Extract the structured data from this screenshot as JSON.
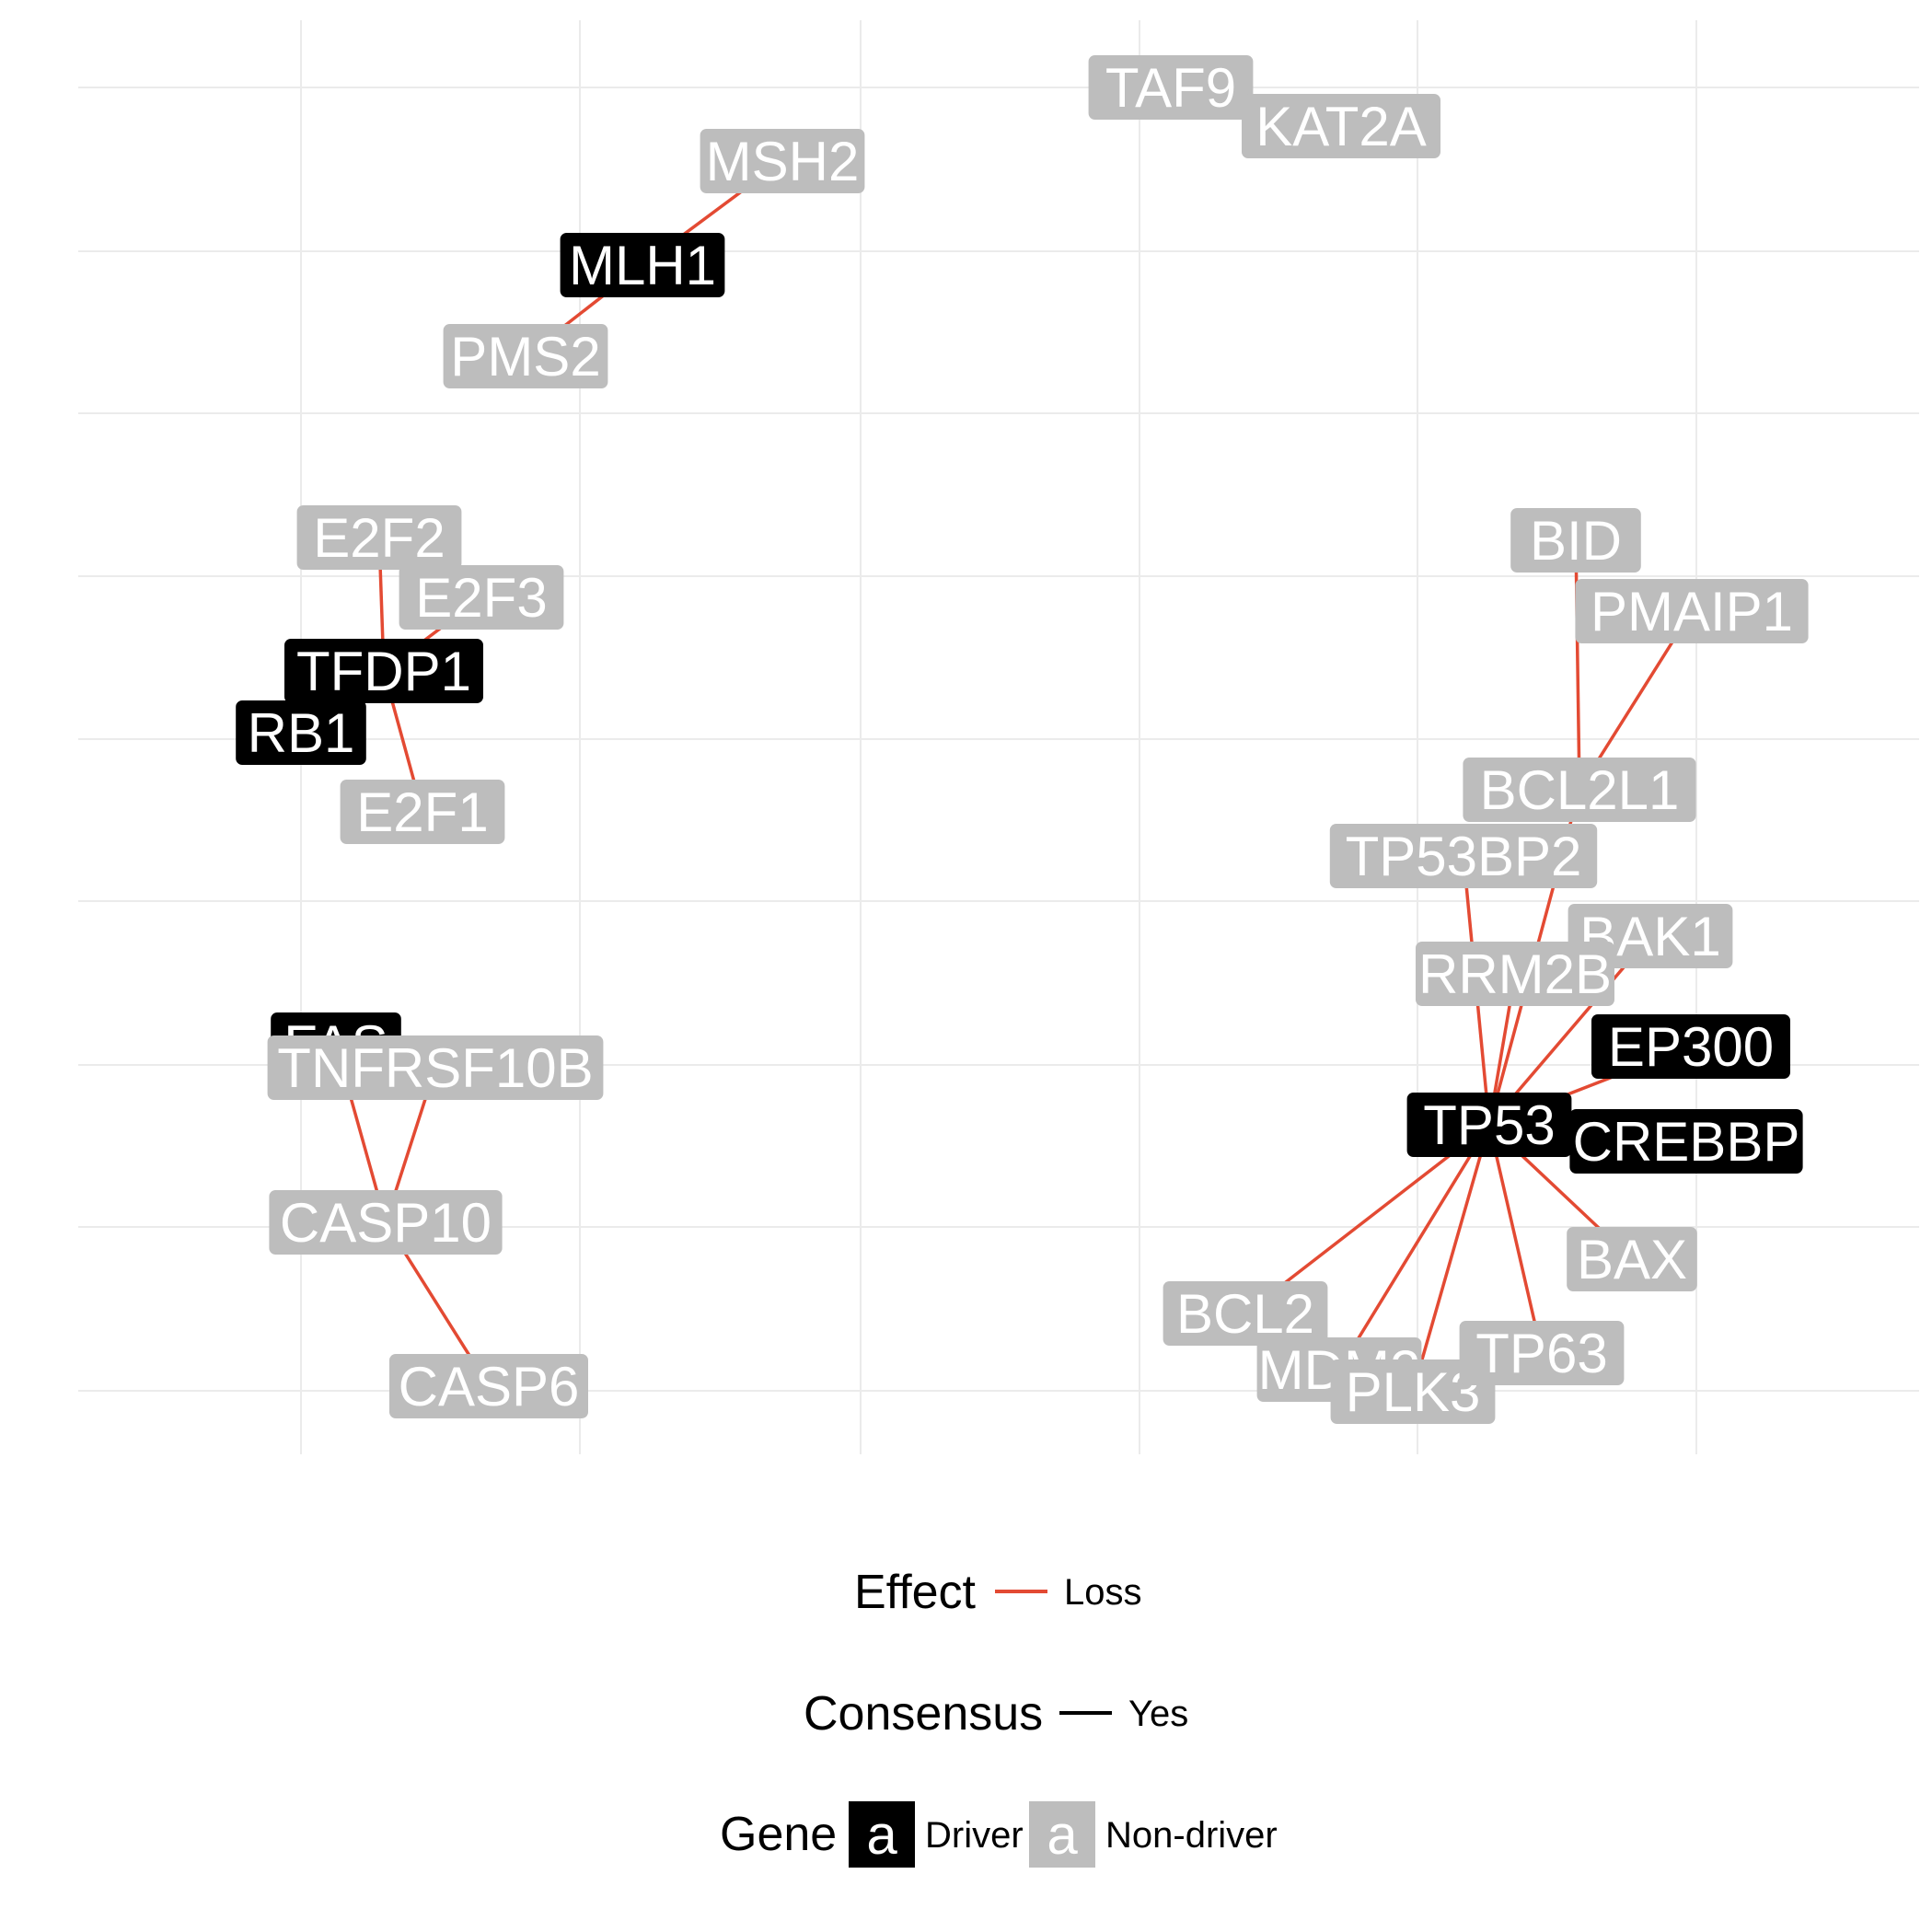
{
  "colors": {
    "background": "#ffffff",
    "grid": "#ebebeb",
    "edge_loss": "#e34a33",
    "driver_fill": "#000000",
    "driver_text": "#ffffff",
    "nondriver_fill": "#bdbdbd",
    "nondriver_text": "#ffffff"
  },
  "nodes": [
    {
      "id": "TAF9",
      "type": "non-driver"
    },
    {
      "id": "KAT2A",
      "type": "non-driver"
    },
    {
      "id": "MSH2",
      "type": "non-driver"
    },
    {
      "id": "MLH1",
      "type": "driver"
    },
    {
      "id": "PMS2",
      "type": "non-driver"
    },
    {
      "id": "E2F2",
      "type": "non-driver"
    },
    {
      "id": "E2F3",
      "type": "non-driver"
    },
    {
      "id": "TFDP1",
      "type": "driver"
    },
    {
      "id": "RB1",
      "type": "driver"
    },
    {
      "id": "E2F1",
      "type": "non-driver"
    },
    {
      "id": "FAS",
      "type": "driver"
    },
    {
      "id": "TNFRSF10B",
      "type": "non-driver"
    },
    {
      "id": "CASP10",
      "type": "non-driver"
    },
    {
      "id": "CASP6",
      "type": "non-driver"
    },
    {
      "id": "BID",
      "type": "non-driver"
    },
    {
      "id": "PMAIP1",
      "type": "non-driver"
    },
    {
      "id": "BCL2L1",
      "type": "non-driver"
    },
    {
      "id": "TP53BP2",
      "type": "non-driver"
    },
    {
      "id": "BAK1",
      "type": "non-driver"
    },
    {
      "id": "RRM2B",
      "type": "non-driver"
    },
    {
      "id": "EP300",
      "type": "driver"
    },
    {
      "id": "TP53",
      "type": "driver"
    },
    {
      "id": "CREBBP",
      "type": "driver"
    },
    {
      "id": "BAX",
      "type": "non-driver"
    },
    {
      "id": "BCL2",
      "type": "non-driver"
    },
    {
      "id": "MDM2",
      "type": "non-driver"
    },
    {
      "id": "PLK3",
      "type": "non-driver"
    },
    {
      "id": "TP63",
      "type": "non-driver"
    }
  ],
  "edges": [
    {
      "from": "MSH2",
      "to": "MLH1",
      "effect": "Loss",
      "consensus": "Yes"
    },
    {
      "from": "MLH1",
      "to": "PMS2",
      "effect": "Loss",
      "consensus": "Yes"
    },
    {
      "from": "E2F2",
      "to": "TFDP1",
      "effect": "Loss",
      "consensus": "Yes"
    },
    {
      "from": "E2F3",
      "to": "TFDP1",
      "effect": "Loss",
      "consensus": "Yes"
    },
    {
      "from": "TFDP1",
      "to": "E2F1",
      "effect": "Loss",
      "consensus": "Yes"
    },
    {
      "from": "TNFRSF10B",
      "to": "CASP10",
      "effect": "Loss",
      "consensus": "Yes"
    },
    {
      "from": "FAS",
      "to": "CASP10",
      "effect": "Loss",
      "consensus": "Yes"
    },
    {
      "from": "CASP10",
      "to": "CASP6",
      "effect": "Loss",
      "consensus": "Yes"
    },
    {
      "from": "BID",
      "to": "BCL2L1",
      "effect": "Loss",
      "consensus": "Yes"
    },
    {
      "from": "PMAIP1",
      "to": "BCL2L1",
      "effect": "Loss",
      "consensus": "Yes"
    },
    {
      "from": "TP53BP2",
      "to": "TP53",
      "effect": "Loss",
      "consensus": "Yes"
    },
    {
      "from": "BCL2L1",
      "to": "TP53",
      "effect": "Loss",
      "consensus": "Yes"
    },
    {
      "from": "BAK1",
      "to": "TP53",
      "effect": "Loss",
      "consensus": "Yes"
    },
    {
      "from": "RRM2B",
      "to": "TP53",
      "effect": "Loss",
      "consensus": "Yes"
    },
    {
      "from": "EP300",
      "to": "TP53",
      "effect": "Loss",
      "consensus": "Yes"
    },
    {
      "from": "CREBBP",
      "to": "TP53",
      "effect": "Loss",
      "consensus": "Yes"
    },
    {
      "from": "TP53",
      "to": "BAX",
      "effect": "Loss",
      "consensus": "Yes"
    },
    {
      "from": "TP53",
      "to": "BCL2",
      "effect": "Loss",
      "consensus": "Yes"
    },
    {
      "from": "TP53",
      "to": "MDM2",
      "effect": "Loss",
      "consensus": "Yes"
    },
    {
      "from": "TP53",
      "to": "PLK3",
      "effect": "Loss",
      "consensus": "Yes"
    },
    {
      "from": "TP53",
      "to": "TP63",
      "effect": "Loss",
      "consensus": "Yes"
    }
  ],
  "legend": {
    "effect": {
      "title": "Effect",
      "items": [
        "Loss"
      ]
    },
    "consensus": {
      "title": "Consensus",
      "items": [
        "Yes"
      ]
    },
    "gene": {
      "title": "Gene",
      "swatch_glyph": "a",
      "items": [
        "Driver",
        "Non-driver"
      ]
    }
  }
}
